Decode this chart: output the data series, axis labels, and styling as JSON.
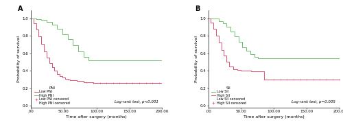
{
  "panel_A": {
    "label": "A",
    "title_legend": "PNI",
    "logrank_text": "Log-rank test, p<0.001",
    "xlabel": "Time after surgery (months)",
    "ylabel": "Probability of survival",
    "xlim": [
      0,
      200
    ],
    "ylim": [
      -0.02,
      1.09
    ],
    "xticks": [
      0,
      50,
      100,
      150,
      200
    ],
    "xtick_labels": [
      ".00",
      "50.00",
      "100.00",
      "150.00",
      "200.00"
    ],
    "yticks": [
      0.0,
      0.2,
      0.4,
      0.6,
      0.8,
      1.0
    ],
    "low_color": "#e05070",
    "high_color": "#70c070",
    "low_pni_x": [
      0,
      4,
      8,
      12,
      16,
      20,
      24,
      28,
      32,
      36,
      40,
      44,
      48,
      52,
      56,
      60,
      65,
      70,
      75,
      80,
      85,
      90,
      95,
      100,
      105,
      110,
      120,
      130,
      140,
      150,
      160,
      170,
      180,
      190,
      200
    ],
    "low_pni_y": [
      1.0,
      0.94,
      0.87,
      0.79,
      0.71,
      0.62,
      0.55,
      0.49,
      0.44,
      0.4,
      0.36,
      0.34,
      0.32,
      0.31,
      0.3,
      0.29,
      0.29,
      0.28,
      0.28,
      0.27,
      0.27,
      0.27,
      0.26,
      0.26,
      0.26,
      0.26,
      0.26,
      0.26,
      0.26,
      0.26,
      0.26,
      0.26,
      0.26,
      0.26,
      0.26
    ],
    "high_pni_x": [
      0,
      8,
      16,
      24,
      32,
      40,
      48,
      56,
      64,
      72,
      80,
      88,
      92,
      96,
      100,
      110,
      120,
      130,
      140,
      150,
      160,
      170,
      180,
      190,
      200
    ],
    "high_pni_y": [
      1.0,
      0.99,
      0.98,
      0.96,
      0.93,
      0.88,
      0.82,
      0.76,
      0.69,
      0.62,
      0.56,
      0.52,
      0.52,
      0.52,
      0.52,
      0.52,
      0.52,
      0.52,
      0.52,
      0.52,
      0.52,
      0.52,
      0.52,
      0.52,
      0.52
    ],
    "low_censor_x": [
      85,
      95,
      105,
      115,
      125,
      135,
      145,
      155,
      165,
      175,
      185,
      195
    ],
    "low_censor_y": [
      0.27,
      0.26,
      0.26,
      0.26,
      0.26,
      0.26,
      0.26,
      0.26,
      0.26,
      0.26,
      0.26,
      0.26
    ],
    "high_censor_x": [],
    "high_censor_y": []
  },
  "panel_B": {
    "label": "B",
    "title_legend": "SII",
    "logrank_text": "Log-rank test, p=0.005",
    "xlabel": "Time after surgery (months)",
    "ylabel": "Probability of survival",
    "xlim": [
      0,
      200
    ],
    "ylim": [
      -0.02,
      1.09
    ],
    "xticks": [
      0,
      50,
      100,
      150,
      200
    ],
    "xtick_labels": [
      ".00",
      "50.00",
      "100.00",
      "150.00",
      "200.00"
    ],
    "yticks": [
      0.0,
      0.2,
      0.4,
      0.6,
      0.8,
      1.0
    ],
    "low_color": "#70c070",
    "high_color": "#e05070",
    "low_sii_x": [
      0,
      8,
      16,
      22,
      28,
      34,
      40,
      46,
      52,
      58,
      64,
      70,
      76,
      82,
      88,
      92,
      96,
      100,
      110,
      120,
      130,
      140,
      150,
      160,
      170,
      180,
      190,
      200
    ],
    "low_sii_y": [
      1.0,
      1.0,
      0.97,
      0.94,
      0.9,
      0.85,
      0.79,
      0.73,
      0.67,
      0.63,
      0.59,
      0.56,
      0.54,
      0.54,
      0.54,
      0.54,
      0.54,
      0.54,
      0.54,
      0.54,
      0.54,
      0.54,
      0.54,
      0.54,
      0.54,
      0.54,
      0.54,
      0.54
    ],
    "high_sii_x": [
      0,
      4,
      8,
      12,
      16,
      20,
      24,
      28,
      32,
      38,
      44,
      50,
      55,
      60,
      65,
      70,
      75,
      80,
      85,
      90,
      95,
      100,
      110,
      120,
      130,
      140,
      150,
      160,
      170,
      180,
      190,
      200
    ],
    "high_sii_y": [
      1.0,
      0.95,
      0.88,
      0.8,
      0.72,
      0.64,
      0.57,
      0.5,
      0.45,
      0.42,
      0.41,
      0.4,
      0.4,
      0.4,
      0.39,
      0.39,
      0.39,
      0.39,
      0.3,
      0.3,
      0.3,
      0.3,
      0.3,
      0.3,
      0.3,
      0.3,
      0.3,
      0.3,
      0.3,
      0.3,
      0.3,
      0.3
    ],
    "high_censor_x": [
      100,
      110,
      120,
      130,
      140,
      150,
      160,
      170,
      180,
      190,
      200
    ],
    "high_censor_y": [
      0.3,
      0.3,
      0.3,
      0.3,
      0.3,
      0.3,
      0.3,
      0.3,
      0.3,
      0.3,
      0.3
    ],
    "low_censor_x": [],
    "low_censor_y": []
  },
  "fig_width": 5.0,
  "fig_height": 1.91,
  "dpi": 100,
  "font_size": 4.5,
  "tick_font_size": 4.0,
  "legend_font_size": 3.5,
  "legend_title_fontsize": 4.0,
  "logrank_font_size": 4.0,
  "panel_label_fontsize": 7.0,
  "line_width": 0.7
}
